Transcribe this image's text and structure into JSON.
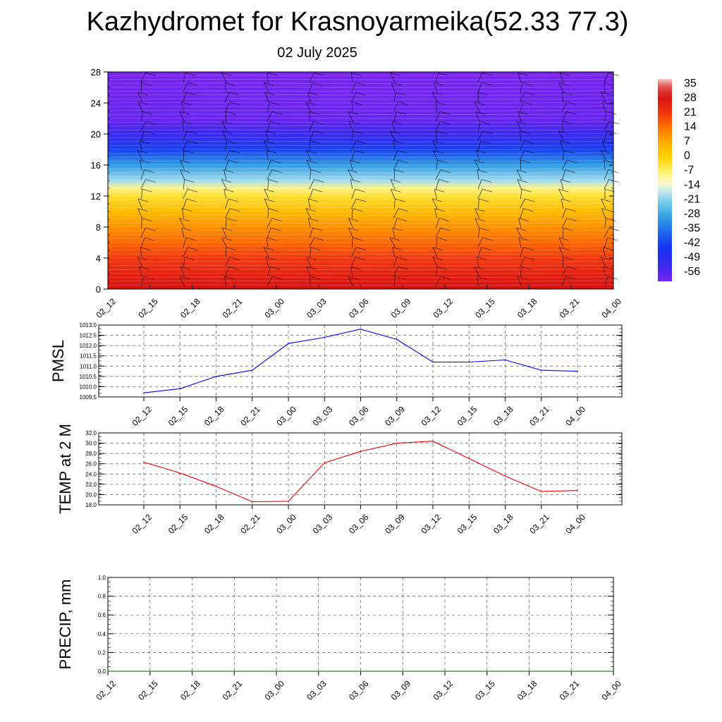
{
  "title": "Kazhydromet for Krasnoyarmeika(52.33 77.3)",
  "subtitle": "02 July 2025",
  "colors": {
    "pmsl_line": "#0000ff",
    "temp_line": "#ff0000",
    "precip_line": "#006400"
  },
  "chart_data": [
    {
      "type": "heatmap",
      "name": "vertical temperature cross-section with wind barbs",
      "x_ticks": [
        "02_12",
        "02_15",
        "02_18",
        "02_21",
        "03_00",
        "03_03",
        "03_06",
        "03_09",
        "03_12",
        "03_15",
        "03_18",
        "03_21",
        "04_00"
      ],
      "y_ticks": [
        "0",
        "4",
        "8",
        "12",
        "16",
        "20",
        "24",
        "28"
      ],
      "ylim": [
        0,
        28
      ],
      "colorbar_labels": [
        "35",
        "28",
        "21",
        "14",
        "7",
        "0",
        "-7",
        "-14",
        "-21",
        "-28",
        "-35",
        "-42",
        "-49",
        "-56"
      ],
      "temperature_by_level": [
        {
          "level": 0,
          "temp": 28
        },
        {
          "level": 2,
          "temp": 24
        },
        {
          "level": 4,
          "temp": 20
        },
        {
          "level": 6,
          "temp": 15
        },
        {
          "level": 8,
          "temp": 10
        },
        {
          "level": 10,
          "temp": 4
        },
        {
          "level": 12,
          "temp": -3
        },
        {
          "level": 13,
          "temp": -8
        },
        {
          "level": 14,
          "temp": -18
        },
        {
          "level": 16,
          "temp": -28
        },
        {
          "level": 18,
          "temp": -40
        },
        {
          "level": 20,
          "temp": -50
        },
        {
          "level": 22,
          "temp": -55
        },
        {
          "level": 28,
          "temp": -57
        }
      ],
      "wind_barbs": true
    },
    {
      "type": "line",
      "ylabel": "PMSL",
      "x_ticks": [
        "02_12",
        "02_15",
        "02_18",
        "02_21",
        "03_00",
        "03_03",
        "03_06",
        "03_09",
        "03_12",
        "03_15",
        "03_18",
        "03_21",
        "04_00"
      ],
      "y_ticks": [
        "1013.0",
        "1012.5",
        "1012.0",
        "1011.5",
        "1011.0",
        "1010.5",
        "1010.0",
        "1009.5"
      ],
      "ylim": [
        1009.5,
        1013.0
      ],
      "grid": true,
      "values": [
        1009.7,
        1009.9,
        1010.5,
        1010.8,
        1012.1,
        1012.4,
        1012.8,
        1012.3,
        1011.2,
        1011.2,
        1011.3,
        1010.8,
        1010.75
      ]
    },
    {
      "type": "line",
      "ylabel": "TEMP at 2 M",
      "x_ticks": [
        "02_12",
        "02_15",
        "02_18",
        "02_21",
        "03_00",
        "03_03",
        "03_06",
        "03_09",
        "03_12",
        "03_15",
        "03_18",
        "03_21",
        "04_00"
      ],
      "y_ticks": [
        "32.0",
        "30.0",
        "28.0",
        "26.0",
        "24.0",
        "22.0",
        "20.0",
        "18.0"
      ],
      "ylim": [
        18.0,
        32.0
      ],
      "grid": true,
      "values": [
        26.3,
        24.2,
        21.6,
        18.6,
        18.7,
        26.2,
        28.4,
        30.0,
        30.4,
        27.0,
        23.6,
        20.6,
        20.8
      ]
    },
    {
      "type": "line",
      "ylabel": "PRECIP, mm",
      "x_ticks": [
        "02_12",
        "02_15",
        "02_18",
        "02_21",
        "03_00",
        "03_03",
        "03_06",
        "03_09",
        "03_12",
        "03_15",
        "03_18",
        "03_21",
        "04_00"
      ],
      "y_ticks": [
        "1.0",
        "0.8",
        "0.6",
        "0.4",
        "0.2",
        "0.0"
      ],
      "ylim": [
        0.0,
        1.0
      ],
      "grid": true,
      "values": [
        0,
        0,
        0,
        0,
        0,
        0,
        0,
        0,
        0,
        0,
        0,
        0,
        0
      ]
    }
  ]
}
